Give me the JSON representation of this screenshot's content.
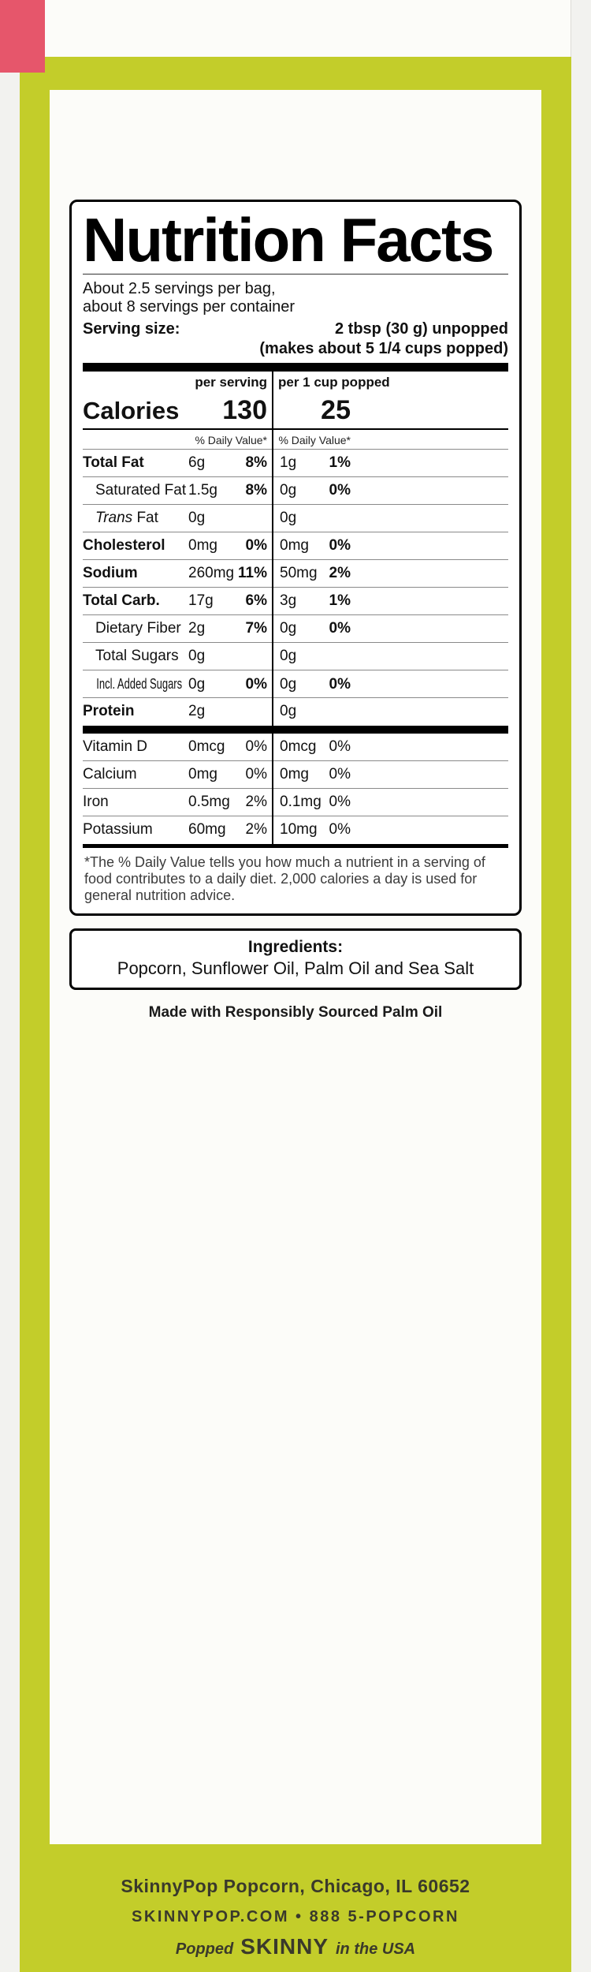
{
  "colors": {
    "lime": "#c3cd2a",
    "red": "#e6566b",
    "footer_text": "#3a392b"
  },
  "label": {
    "title": "Nutrition Facts",
    "servings_line1": "About 2.5 servings per bag,",
    "servings_line2": "about 8 servings per container",
    "serving_size_label": "Serving size:",
    "serving_size_value": "2 tbsp (30 g) unpopped",
    "serving_size_note": "(makes about 5 1/4 cups popped)",
    "col1_header": "per serving",
    "col2_header": "per 1 cup popped",
    "calories_label": "Calories",
    "calories_col1": "130",
    "calories_col2": "25",
    "dv_header_col1": "% Daily Value*",
    "dv_header_col2": "% Daily Value*",
    "rows": [
      {
        "name": "Total Fat",
        "amount1": "6g",
        "dv1": "8%",
        "amount2": "1g",
        "dv2": "1%"
      },
      {
        "name": "Saturated Fat",
        "amount1": "1.5g",
        "dv1": "8%",
        "amount2": "0g",
        "dv2": "0%"
      },
      {
        "italic": "Trans",
        "name": "Fat",
        "amount1": "0g",
        "dv1": "",
        "amount2": "0g",
        "dv2": ""
      },
      {
        "name": "Cholesterol",
        "amount1": "0mg",
        "dv1": "0%",
        "amount2": "0mg",
        "dv2": "0%"
      },
      {
        "name": "Sodium",
        "amount1": "260mg",
        "dv1": "11%",
        "amount2": "50mg",
        "dv2": "2%"
      },
      {
        "name": "Total Carb.",
        "amount1": "17g",
        "dv1": "6%",
        "amount2": "3g",
        "dv2": "1%"
      },
      {
        "name": "Dietary Fiber",
        "amount1": "2g",
        "dv1": "7%",
        "amount2": "0g",
        "dv2": "0%"
      },
      {
        "name": "Total Sugars",
        "amount1": "0g",
        "dv1": "",
        "amount2": "0g",
        "dv2": ""
      },
      {
        "name": "Incl. Added Sugars",
        "amount1": "0g",
        "dv1": "0%",
        "amount2": "0g",
        "dv2": "0%"
      },
      {
        "name": "Protein",
        "amount1": "2g",
        "dv1": "",
        "amount2": "0g",
        "dv2": ""
      }
    ],
    "micros": [
      {
        "name": "Vitamin D",
        "amount1": "0mcg",
        "dv1": "0%",
        "amount2": "0mcg",
        "dv2": "0%"
      },
      {
        "name": "Calcium",
        "amount1": "0mg",
        "dv1": "0%",
        "amount2": "0mg",
        "dv2": "0%"
      },
      {
        "name": "Iron",
        "amount1": "0.5mg",
        "dv1": "2%",
        "amount2": "0.1mg",
        "dv2": "0%"
      },
      {
        "name": "Potassium",
        "amount1": "60mg",
        "dv1": "2%",
        "amount2": "10mg",
        "dv2": "0%"
      }
    ],
    "footnote": "*The % Daily Value tells you how much a nutrient in a serving of food contributes to a daily diet. 2,000 calories a day is used for general nutrition advice.",
    "ingredients_title": "Ingredients:",
    "ingredients_text": "Popcorn, Sunflower Oil, Palm Oil and Sea Salt",
    "palm_note": "Made with Responsibly Sourced Palm Oil"
  },
  "footer": {
    "line1": "SkinnyPop Popcorn, Chicago, IL 60652",
    "line2": "SKINNYPOP.COM • 888 5-POPCORN",
    "line3_pre": "Popped",
    "line3_brand": "SKINNY",
    "line3_post": "in the USA"
  }
}
